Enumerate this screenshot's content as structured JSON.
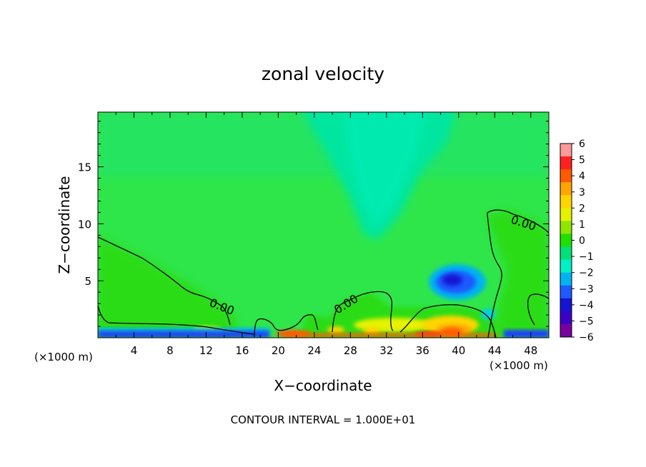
{
  "chart_data": {
    "type": "heatmap",
    "title": "zonal velocity",
    "xlabel": "X−coordinate",
    "ylabel": "Z−coordinate",
    "x_unit_left": "(×1000 m)",
    "x_unit_right": "(×1000 m)",
    "x_ticks": [
      4,
      8,
      12,
      16,
      20,
      24,
      28,
      32,
      36,
      40,
      44,
      48
    ],
    "y_ticks": [
      5,
      10,
      15
    ],
    "xlim": [
      0,
      50
    ],
    "ylim": [
      0,
      19.8
    ],
    "contour_interval_text": "CONTOUR INTERVAL = 1.000E+01",
    "contour_labels": [
      {
        "text": "0.00",
        "x": 14,
        "y": 2.4
      },
      {
        "text": "0.00",
        "x": 27.5,
        "y": 2.6
      },
      {
        "text": "0.00",
        "x": 47,
        "y": 10.2
      }
    ],
    "colorbar": {
      "levels": [
        6,
        5,
        4,
        3,
        2,
        1,
        0,
        -1,
        -2,
        -3,
        -4,
        -5,
        -6
      ],
      "labels": [
        "6",
        "5",
        "4",
        "3",
        "2",
        "1",
        "0",
        "−1",
        "−2",
        "−3",
        "−4",
        "−5",
        "−6"
      ],
      "colors": [
        "#ff9a9a",
        "#ff2020",
        "#ff5a00",
        "#ffa500",
        "#ffd500",
        "#e6f200",
        "#8ee600",
        "#1ee000",
        "#00e07a",
        "#00f0c8",
        "#00b4f0",
        "#1e5aff",
        "#1414d2",
        "#3c00c8",
        "#7800a0"
      ]
    },
    "background_value": -0.3,
    "features": [
      {
        "name": "upper cyan tongue",
        "x_center": 30.5,
        "z_range": [
          8,
          19.8
        ],
        "value": -1.6
      },
      {
        "name": "blue vortex",
        "x_center": 39.5,
        "z_center": 5,
        "value": -3.7
      },
      {
        "name": "surface positive band",
        "x_range": [
          20,
          44
        ],
        "z_range": [
          0,
          1.2
        ],
        "value": 4
      }
    ]
  }
}
